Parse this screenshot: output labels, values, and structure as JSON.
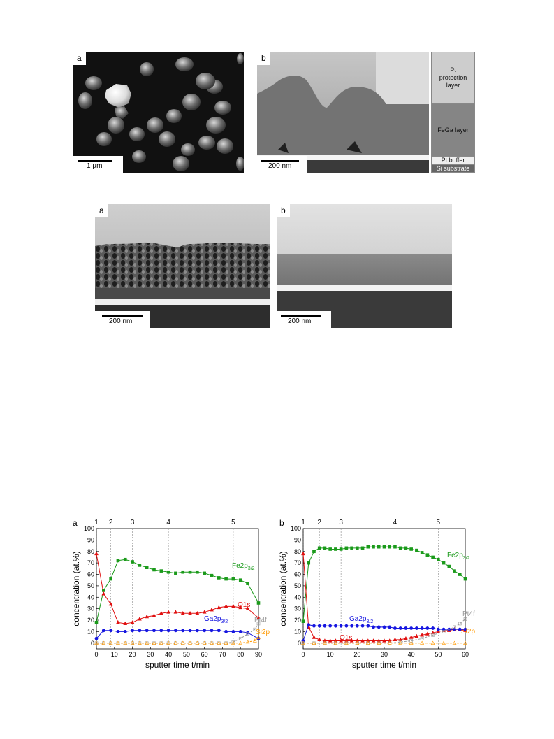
{
  "figure1": {
    "panel_a": {
      "label": "a",
      "scale": "1 µm"
    },
    "panel_b": {
      "label": "b",
      "scale": "200 nm",
      "layers": [
        "Pt protection layer",
        "FeGa layer",
        "Pt buffer",
        "Si substrate"
      ]
    }
  },
  "figure2": {
    "panel_a": {
      "label": "a",
      "scale": "200 nm"
    },
    "panel_b": {
      "label": "b",
      "scale": "200 nm"
    }
  },
  "chart_data": [
    {
      "panel": "a",
      "type": "line",
      "xlabel": "sputter time t/min",
      "ylabel": "concentration (at.%)",
      "xlim": [
        0,
        90
      ],
      "ylim": [
        -5,
        100
      ],
      "xticks": [
        0,
        10,
        20,
        30,
        40,
        50,
        60,
        70,
        80,
        90
      ],
      "yticks": [
        0,
        10,
        20,
        30,
        40,
        50,
        60,
        70,
        80,
        90,
        100
      ],
      "marker_lines": [
        {
          "label": "1",
          "x": 0
        },
        {
          "label": "2",
          "x": 8
        },
        {
          "label": "3",
          "x": 20
        },
        {
          "label": "4",
          "x": 40
        },
        {
          "label": "5",
          "x": 76
        }
      ],
      "series": [
        {
          "name": "Fe2p",
          "name_sub": "3/2",
          "color": "#1a9a1a",
          "marker": "square",
          "points": [
            [
              0,
              18
            ],
            [
              4,
              46
            ],
            [
              8,
              56
            ],
            [
              12,
              72
            ],
            [
              16,
              73
            ],
            [
              20,
              71
            ],
            [
              24,
              68
            ],
            [
              28,
              66
            ],
            [
              32,
              64
            ],
            [
              36,
              63
            ],
            [
              40,
              62
            ],
            [
              44,
              61
            ],
            [
              48,
              62
            ],
            [
              52,
              62
            ],
            [
              56,
              62
            ],
            [
              60,
              61
            ],
            [
              64,
              59
            ],
            [
              68,
              57
            ],
            [
              72,
              56
            ],
            [
              76,
              56
            ],
            [
              80,
              55
            ],
            [
              84,
              52
            ],
            [
              90,
              35
            ]
          ]
        },
        {
          "name": "O1s",
          "color": "#e01010",
          "marker": "triangle",
          "points": [
            [
              0,
              78
            ],
            [
              4,
              43
            ],
            [
              8,
              34
            ],
            [
              12,
              18
            ],
            [
              16,
              17
            ],
            [
              20,
              18
            ],
            [
              24,
              21
            ],
            [
              28,
              23
            ],
            [
              32,
              24
            ],
            [
              36,
              26
            ],
            [
              40,
              27
            ],
            [
              44,
              27
            ],
            [
              48,
              26
            ],
            [
              52,
              26
            ],
            [
              56,
              26
            ],
            [
              60,
              27
            ],
            [
              64,
              29
            ],
            [
              68,
              31
            ],
            [
              72,
              32
            ],
            [
              76,
              32
            ],
            [
              80,
              31
            ],
            [
              84,
              30
            ],
            [
              90,
              22
            ]
          ]
        },
        {
          "name": "Ga2p",
          "name_sub": "3/2",
          "color": "#1515e0",
          "marker": "circle",
          "points": [
            [
              0,
              4
            ],
            [
              4,
              11
            ],
            [
              8,
              11
            ],
            [
              12,
              10
            ],
            [
              16,
              10
            ],
            [
              20,
              11
            ],
            [
              24,
              11
            ],
            [
              28,
              11
            ],
            [
              32,
              11
            ],
            [
              36,
              11
            ],
            [
              40,
              11
            ],
            [
              44,
              11
            ],
            [
              48,
              11
            ],
            [
              52,
              11
            ],
            [
              56,
              11
            ],
            [
              60,
              11
            ],
            [
              64,
              11
            ],
            [
              68,
              11
            ],
            [
              72,
              10
            ],
            [
              76,
              10
            ],
            [
              80,
              10
            ],
            [
              84,
              9
            ],
            [
              90,
              4
            ]
          ]
        },
        {
          "name": "Pt4f",
          "color": "#999999",
          "marker": "open-square",
          "points": [
            [
              0,
              0
            ],
            [
              4,
              0
            ],
            [
              8,
              0
            ],
            [
              12,
              0
            ],
            [
              16,
              0
            ],
            [
              20,
              0
            ],
            [
              24,
              0
            ],
            [
              28,
              0
            ],
            [
              32,
              0
            ],
            [
              36,
              0
            ],
            [
              40,
              0
            ],
            [
              44,
              0
            ],
            [
              48,
              0
            ],
            [
              52,
              0
            ],
            [
              56,
              0
            ],
            [
              60,
              0
            ],
            [
              64,
              0
            ],
            [
              68,
              0
            ],
            [
              72,
              0
            ],
            [
              76,
              1
            ],
            [
              80,
              4
            ],
            [
              84,
              8
            ],
            [
              88,
              12
            ],
            [
              90,
              17
            ]
          ]
        },
        {
          "name": "Si2p",
          "color": "#ff9900",
          "marker": "open-triangle",
          "points": [
            [
              0,
              0
            ],
            [
              4,
              0
            ],
            [
              8,
              0
            ],
            [
              12,
              0
            ],
            [
              16,
              0
            ],
            [
              20,
              0
            ],
            [
              24,
              0
            ],
            [
              28,
              0
            ],
            [
              32,
              0
            ],
            [
              36,
              0
            ],
            [
              40,
              0
            ],
            [
              44,
              0
            ],
            [
              48,
              0
            ],
            [
              52,
              0
            ],
            [
              56,
              0
            ],
            [
              60,
              0
            ],
            [
              64,
              0
            ],
            [
              68,
              0
            ],
            [
              72,
              0
            ],
            [
              76,
              0
            ],
            [
              80,
              0
            ],
            [
              84,
              1
            ],
            [
              88,
              2
            ],
            [
              90,
              5
            ]
          ]
        }
      ]
    },
    {
      "panel": "b",
      "type": "line",
      "xlabel": "sputter time t/min",
      "ylabel": "concentration (at.%)",
      "xlim": [
        0,
        60
      ],
      "ylim": [
        -5,
        100
      ],
      "xticks": [
        0,
        10,
        20,
        30,
        40,
        50,
        60
      ],
      "yticks": [
        0,
        10,
        20,
        30,
        40,
        50,
        60,
        70,
        80,
        90,
        100
      ],
      "marker_lines": [
        {
          "label": "1",
          "x": 0
        },
        {
          "label": "2",
          "x": 6
        },
        {
          "label": "3",
          "x": 14
        },
        {
          "label": "4",
          "x": 34
        },
        {
          "label": "5",
          "x": 50
        }
      ],
      "series": [
        {
          "name": "Fe2p",
          "name_sub": "3/2",
          "color": "#1a9a1a",
          "marker": "square",
          "points": [
            [
              0,
              19
            ],
            [
              2,
              70
            ],
            [
              4,
              80
            ],
            [
              6,
              83
            ],
            [
              8,
              83
            ],
            [
              10,
              82
            ],
            [
              12,
              82
            ],
            [
              14,
              82
            ],
            [
              16,
              83
            ],
            [
              18,
              83
            ],
            [
              20,
              83
            ],
            [
              22,
              83
            ],
            [
              24,
              84
            ],
            [
              26,
              84
            ],
            [
              28,
              84
            ],
            [
              30,
              84
            ],
            [
              32,
              84
            ],
            [
              34,
              84
            ],
            [
              36,
              83
            ],
            [
              38,
              83
            ],
            [
              40,
              82
            ],
            [
              42,
              81
            ],
            [
              44,
              79
            ],
            [
              46,
              77
            ],
            [
              48,
              75
            ],
            [
              50,
              73
            ],
            [
              52,
              70
            ],
            [
              54,
              67
            ],
            [
              56,
              63
            ],
            [
              58,
              60
            ],
            [
              60,
              56
            ]
          ]
        },
        {
          "name": "O1s",
          "color": "#e01010",
          "marker": "triangle",
          "points": [
            [
              0,
              78
            ],
            [
              2,
              14
            ],
            [
              4,
              5
            ],
            [
              6,
              3
            ],
            [
              8,
              2
            ],
            [
              10,
              2
            ],
            [
              12,
              2
            ],
            [
              14,
              2
            ],
            [
              16,
              2
            ],
            [
              18,
              2
            ],
            [
              20,
              2
            ],
            [
              22,
              2
            ],
            [
              24,
              2
            ],
            [
              26,
              2
            ],
            [
              28,
              2
            ],
            [
              30,
              2
            ],
            [
              32,
              2
            ],
            [
              34,
              3
            ],
            [
              36,
              3
            ],
            [
              38,
              4
            ],
            [
              40,
              5
            ],
            [
              42,
              6
            ],
            [
              44,
              7
            ],
            [
              46,
              8
            ],
            [
              48,
              9
            ],
            [
              50,
              10
            ],
            [
              52,
              11
            ],
            [
              54,
              11
            ],
            [
              56,
              12
            ],
            [
              58,
              12
            ],
            [
              60,
              11
            ]
          ]
        },
        {
          "name": "Ga2p",
          "name_sub": "3/2",
          "color": "#1515e0",
          "marker": "circle",
          "points": [
            [
              0,
              2
            ],
            [
              2,
              16
            ],
            [
              4,
              15
            ],
            [
              6,
              15
            ],
            [
              8,
              15
            ],
            [
              10,
              15
            ],
            [
              12,
              15
            ],
            [
              14,
              15
            ],
            [
              16,
              15
            ],
            [
              18,
              15
            ],
            [
              20,
              15
            ],
            [
              22,
              15
            ],
            [
              24,
              15
            ],
            [
              26,
              14
            ],
            [
              28,
              14
            ],
            [
              30,
              14
            ],
            [
              32,
              14
            ],
            [
              34,
              13
            ],
            [
              36,
              13
            ],
            [
              38,
              13
            ],
            [
              40,
              13
            ],
            [
              42,
              13
            ],
            [
              44,
              13
            ],
            [
              46,
              13
            ],
            [
              48,
              13
            ],
            [
              50,
              12
            ],
            [
              52,
              12
            ],
            [
              54,
              12
            ],
            [
              56,
              12
            ],
            [
              58,
              12
            ],
            [
              60,
              12
            ]
          ]
        },
        {
          "name": "Pt4f",
          "color": "#999999",
          "marker": "open-square",
          "points": [
            [
              0,
              0
            ],
            [
              4,
              0
            ],
            [
              8,
              0
            ],
            [
              12,
              0
            ],
            [
              16,
              0
            ],
            [
              20,
              0
            ],
            [
              24,
              0
            ],
            [
              28,
              0
            ],
            [
              32,
              0
            ],
            [
              36,
              1
            ],
            [
              40,
              2
            ],
            [
              44,
              4
            ],
            [
              48,
              7
            ],
            [
              52,
              10
            ],
            [
              56,
              14
            ],
            [
              58,
              17
            ],
            [
              60,
              21
            ]
          ]
        },
        {
          "name": "Si2p",
          "color": "#ff9900",
          "marker": "open-triangle",
          "points": [
            [
              0,
              0
            ],
            [
              4,
              0
            ],
            [
              8,
              0
            ],
            [
              12,
              0
            ],
            [
              16,
              0
            ],
            [
              20,
              0
            ],
            [
              24,
              0
            ],
            [
              28,
              0
            ],
            [
              32,
              0
            ],
            [
              36,
              0
            ],
            [
              40,
              0
            ],
            [
              44,
              0
            ],
            [
              48,
              0
            ],
            [
              52,
              0
            ],
            [
              56,
              0
            ],
            [
              60,
              0
            ]
          ]
        }
      ]
    }
  ]
}
